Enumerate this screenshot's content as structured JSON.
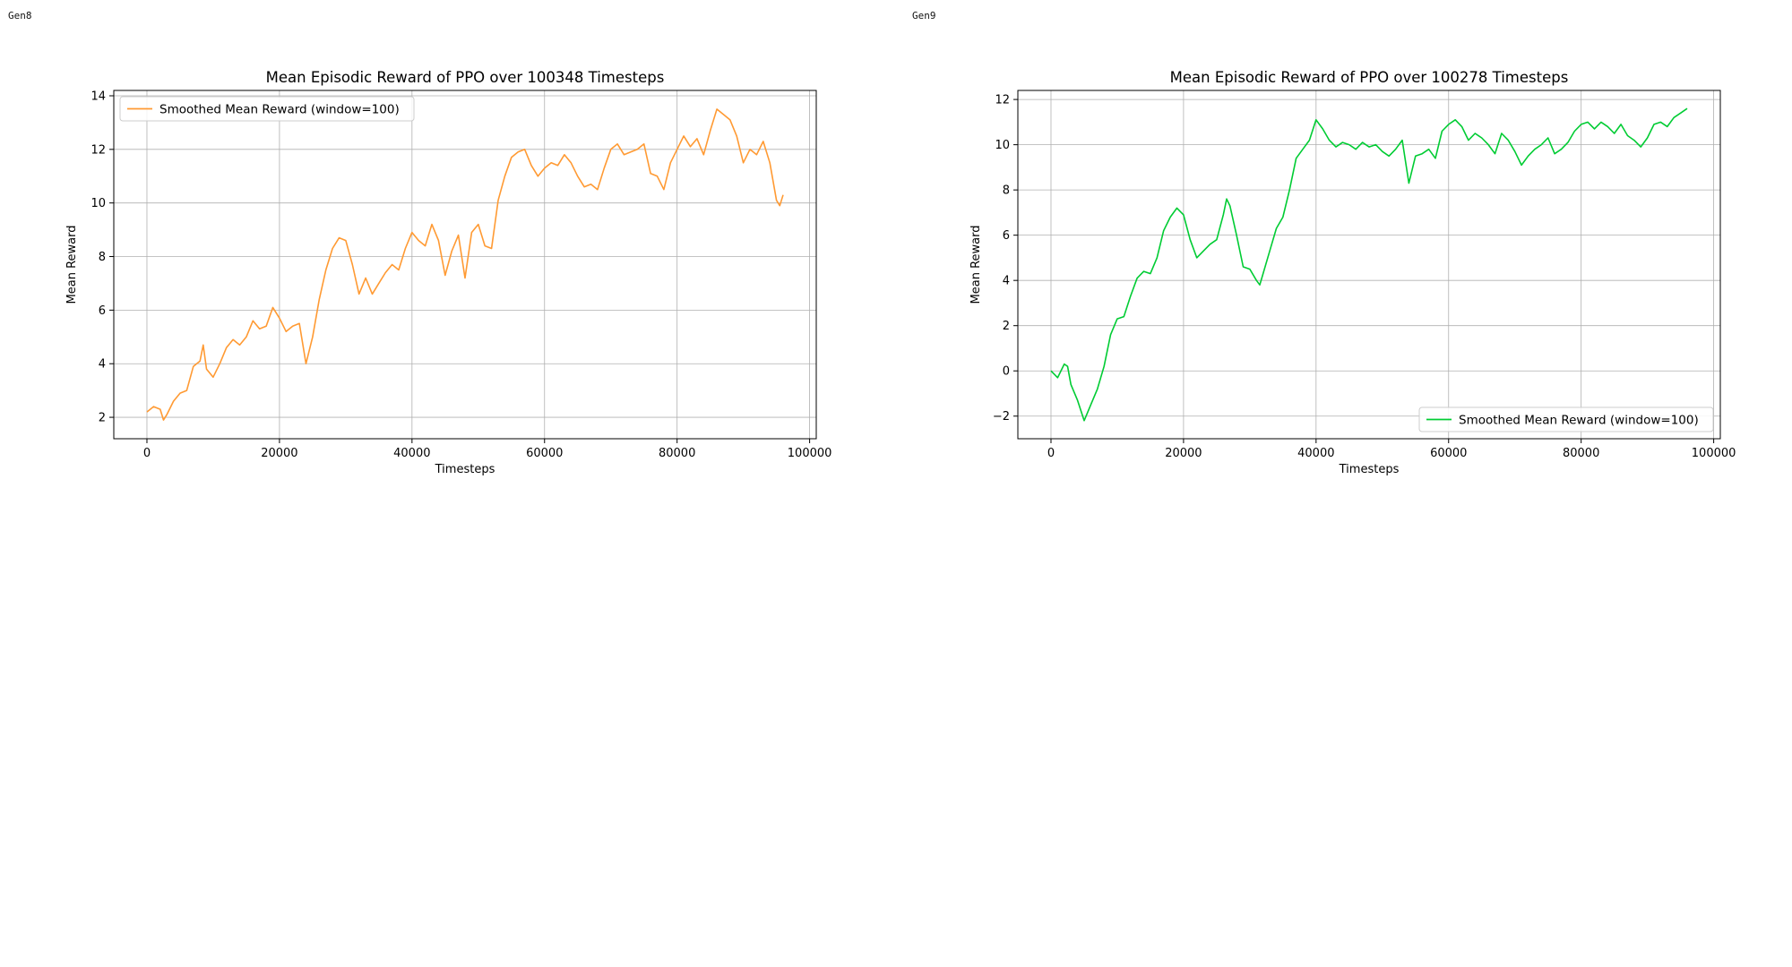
{
  "panels": [
    {
      "label": "Gen8",
      "chart_data": {
        "type": "line",
        "title": "Mean Episodic Reward of PPO over 100348 Timesteps",
        "xlabel": "Timesteps",
        "ylabel": "Mean Reward",
        "xlim": [
          -5000,
          101000
        ],
        "ylim": [
          1.2,
          14.2
        ],
        "xticks": [
          0,
          20000,
          40000,
          60000,
          80000,
          100000
        ],
        "yticks": [
          2,
          4,
          6,
          8,
          10,
          12,
          14
        ],
        "grid": true,
        "legend_position": "upper-left",
        "series": [
          {
            "name": "Smoothed Mean Reward (window=100)",
            "color": "#ff9a33",
            "points": [
              [
                0,
                2.2
              ],
              [
                1000,
                2.4
              ],
              [
                2000,
                2.3
              ],
              [
                2500,
                1.9
              ],
              [
                3000,
                2.1
              ],
              [
                4000,
                2.6
              ],
              [
                5000,
                2.9
              ],
              [
                6000,
                3.0
              ],
              [
                7000,
                3.9
              ],
              [
                8000,
                4.1
              ],
              [
                8500,
                4.7
              ],
              [
                9000,
                3.8
              ],
              [
                10000,
                3.5
              ],
              [
                11000,
                4.0
              ],
              [
                12000,
                4.6
              ],
              [
                13000,
                4.9
              ],
              [
                14000,
                4.7
              ],
              [
                15000,
                5.0
              ],
              [
                16000,
                5.6
              ],
              [
                17000,
                5.3
              ],
              [
                18000,
                5.4
              ],
              [
                19000,
                6.1
              ],
              [
                20000,
                5.7
              ],
              [
                21000,
                5.2
              ],
              [
                22000,
                5.4
              ],
              [
                23000,
                5.5
              ],
              [
                24000,
                4.0
              ],
              [
                25000,
                5.0
              ],
              [
                26000,
                6.4
              ],
              [
                27000,
                7.5
              ],
              [
                28000,
                8.3
              ],
              [
                29000,
                8.7
              ],
              [
                30000,
                8.6
              ],
              [
                31000,
                7.7
              ],
              [
                32000,
                6.6
              ],
              [
                33000,
                7.2
              ],
              [
                34000,
                6.6
              ],
              [
                35000,
                7.0
              ],
              [
                36000,
                7.4
              ],
              [
                37000,
                7.7
              ],
              [
                38000,
                7.5
              ],
              [
                39000,
                8.3
              ],
              [
                40000,
                8.9
              ],
              [
                41000,
                8.6
              ],
              [
                42000,
                8.4
              ],
              [
                43000,
                9.2
              ],
              [
                44000,
                8.6
              ],
              [
                45000,
                7.3
              ],
              [
                46000,
                8.2
              ],
              [
                47000,
                8.8
              ],
              [
                48000,
                7.2
              ],
              [
                49000,
                8.9
              ],
              [
                50000,
                9.2
              ],
              [
                51000,
                8.4
              ],
              [
                52000,
                8.3
              ],
              [
                53000,
                10.1
              ],
              [
                54000,
                11.0
              ],
              [
                55000,
                11.7
              ],
              [
                56000,
                11.9
              ],
              [
                57000,
                12.0
              ],
              [
                58000,
                11.4
              ],
              [
                59000,
                11.0
              ],
              [
                60000,
                11.3
              ],
              [
                61000,
                11.5
              ],
              [
                62000,
                11.4
              ],
              [
                63000,
                11.8
              ],
              [
                64000,
                11.5
              ],
              [
                65000,
                11.0
              ],
              [
                66000,
                10.6
              ],
              [
                67000,
                10.7
              ],
              [
                68000,
                10.5
              ],
              [
                69000,
                11.3
              ],
              [
                70000,
                12.0
              ],
              [
                71000,
                12.2
              ],
              [
                72000,
                11.8
              ],
              [
                73000,
                11.9
              ],
              [
                74000,
                12.0
              ],
              [
                75000,
                12.2
              ],
              [
                76000,
                11.1
              ],
              [
                77000,
                11.0
              ],
              [
                78000,
                10.5
              ],
              [
                79000,
                11.5
              ],
              [
                80000,
                12.0
              ],
              [
                81000,
                12.5
              ],
              [
                82000,
                12.1
              ],
              [
                83000,
                12.4
              ],
              [
                84000,
                11.8
              ],
              [
                85000,
                12.7
              ],
              [
                86000,
                13.5
              ],
              [
                87000,
                13.3
              ],
              [
                88000,
                13.1
              ],
              [
                89000,
                12.5
              ],
              [
                90000,
                11.5
              ],
              [
                91000,
                12.0
              ],
              [
                92000,
                11.8
              ],
              [
                93000,
                12.3
              ],
              [
                94000,
                11.5
              ],
              [
                95000,
                10.1
              ],
              [
                95500,
                9.9
              ],
              [
                96000,
                10.3
              ]
            ]
          }
        ]
      }
    },
    {
      "label": "Gen9",
      "chart_data": {
        "type": "line",
        "title": "Mean Episodic Reward of PPO over 100278 Timesteps",
        "xlabel": "Timesteps",
        "ylabel": "Mean Reward",
        "xlim": [
          -5000,
          101000
        ],
        "ylim": [
          -3.0,
          12.4
        ],
        "xticks": [
          0,
          20000,
          40000,
          60000,
          80000,
          100000
        ],
        "yticks": [
          -2,
          0,
          2,
          4,
          6,
          8,
          10,
          12
        ],
        "ytick_labels": [
          "−2",
          "0",
          "2",
          "4",
          "6",
          "8",
          "10",
          "12"
        ],
        "grid": true,
        "legend_position": "lower-right",
        "series": [
          {
            "name": "Smoothed Mean Reward (window=100)",
            "color": "#00cc33",
            "points": [
              [
                0,
                0.0
              ],
              [
                1000,
                -0.3
              ],
              [
                2000,
                0.3
              ],
              [
                2500,
                0.2
              ],
              [
                3000,
                -0.6
              ],
              [
                4000,
                -1.3
              ],
              [
                5000,
                -2.2
              ],
              [
                6000,
                -1.5
              ],
              [
                7000,
                -0.8
              ],
              [
                8000,
                0.2
              ],
              [
                9000,
                1.6
              ],
              [
                10000,
                2.3
              ],
              [
                11000,
                2.4
              ],
              [
                12000,
                3.3
              ],
              [
                13000,
                4.1
              ],
              [
                14000,
                4.4
              ],
              [
                15000,
                4.3
              ],
              [
                16000,
                5.0
              ],
              [
                17000,
                6.2
              ],
              [
                18000,
                6.8
              ],
              [
                19000,
                7.2
              ],
              [
                20000,
                6.9
              ],
              [
                21000,
                5.8
              ],
              [
                22000,
                5.0
              ],
              [
                23000,
                5.3
              ],
              [
                24000,
                5.6
              ],
              [
                25000,
                5.8
              ],
              [
                26000,
                6.9
              ],
              [
                26500,
                7.6
              ],
              [
                27000,
                7.3
              ],
              [
                28000,
                6.0
              ],
              [
                29000,
                4.6
              ],
              [
                30000,
                4.5
              ],
              [
                31000,
                4.0
              ],
              [
                31500,
                3.8
              ],
              [
                32000,
                4.3
              ],
              [
                33000,
                5.3
              ],
              [
                34000,
                6.3
              ],
              [
                35000,
                6.8
              ],
              [
                36000,
                8.0
              ],
              [
                37000,
                9.4
              ],
              [
                38000,
                9.8
              ],
              [
                39000,
                10.2
              ],
              [
                40000,
                11.1
              ],
              [
                41000,
                10.7
              ],
              [
                42000,
                10.2
              ],
              [
                43000,
                9.9
              ],
              [
                44000,
                10.1
              ],
              [
                45000,
                10.0
              ],
              [
                46000,
                9.8
              ],
              [
                47000,
                10.1
              ],
              [
                48000,
                9.9
              ],
              [
                49000,
                10.0
              ],
              [
                50000,
                9.7
              ],
              [
                51000,
                9.5
              ],
              [
                52000,
                9.8
              ],
              [
                53000,
                10.2
              ],
              [
                54000,
                8.3
              ],
              [
                55000,
                9.5
              ],
              [
                56000,
                9.6
              ],
              [
                57000,
                9.8
              ],
              [
                58000,
                9.4
              ],
              [
                59000,
                10.6
              ],
              [
                60000,
                10.9
              ],
              [
                61000,
                11.1
              ],
              [
                62000,
                10.8
              ],
              [
                63000,
                10.2
              ],
              [
                64000,
                10.5
              ],
              [
                65000,
                10.3
              ],
              [
                66000,
                10.0
              ],
              [
                67000,
                9.6
              ],
              [
                68000,
                10.5
              ],
              [
                69000,
                10.2
              ],
              [
                70000,
                9.7
              ],
              [
                71000,
                9.1
              ],
              [
                72000,
                9.5
              ],
              [
                73000,
                9.8
              ],
              [
                74000,
                10.0
              ],
              [
                75000,
                10.3
              ],
              [
                76000,
                9.6
              ],
              [
                77000,
                9.8
              ],
              [
                78000,
                10.1
              ],
              [
                79000,
                10.6
              ],
              [
                80000,
                10.9
              ],
              [
                81000,
                11.0
              ],
              [
                82000,
                10.7
              ],
              [
                83000,
                11.0
              ],
              [
                84000,
                10.8
              ],
              [
                85000,
                10.5
              ],
              [
                86000,
                10.9
              ],
              [
                87000,
                10.4
              ],
              [
                88000,
                10.2
              ],
              [
                89000,
                9.9
              ],
              [
                90000,
                10.3
              ],
              [
                91000,
                10.9
              ],
              [
                92000,
                11.0
              ],
              [
                93000,
                10.8
              ],
              [
                94000,
                11.2
              ],
              [
                95000,
                11.4
              ],
              [
                96000,
                11.6
              ]
            ]
          }
        ]
      }
    }
  ]
}
